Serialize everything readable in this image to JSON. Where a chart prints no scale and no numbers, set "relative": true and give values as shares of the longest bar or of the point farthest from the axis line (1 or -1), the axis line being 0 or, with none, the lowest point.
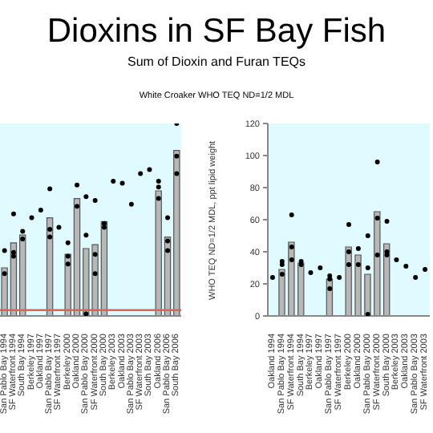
{
  "chart_data": [
    {
      "type": "bar",
      "title": "Dioxins in SF Bay Fish",
      "subtitle": "Sum of Dioxin and Furan TEQs",
      "annotations": [
        "White Croaker WHO TEQ ND=1/2 MDL"
      ],
      "relative": true,
      "marker": "circle",
      "categories": [
        "San Pablo Bay 1994",
        "SF Waterfront 1994",
        "South Bay 1994",
        "Berkeley 1997",
        "Oakland 1997",
        "San Pablo Bay 1997",
        "SF Waterfront 1997",
        "Berkeley 2000",
        "Oakland 2000",
        "San Pablo Bay 2000",
        "SF Waterfront 2000",
        "South Bay 2000",
        "Berkeley 2003",
        "Oakland 2003",
        "San Pablo Bay 2003",
        "SF Waterfront 2003",
        "South Bay 2003",
        "Oakland 2006",
        "San Pablo Bay 2006",
        "South Bay 2006"
      ],
      "series": [
        {
          "color": "#b8b8b8",
          "values": [
            0.25,
            0.38,
            0.42,
            null,
            null,
            0.51,
            null,
            0.32,
            0.61,
            0.35,
            0.37,
            0.49,
            null,
            null,
            null,
            null,
            null,
            0.65,
            0.41,
            0.86
          ]
        },
        {
          "type": "scatter",
          "color": "#000000",
          "values": [
            0.34,
            0.53,
            0.44,
            0.51,
            0.55,
            0.66,
            0.46,
            0.38,
            0.68,
            0.62,
            0.6,
            0.48,
            0.7,
            0.69,
            0.58,
            0.74,
            0.76,
            0.7,
            0.51,
            1
          ]
        },
        {
          "type": "scatter",
          "color": "#000000",
          "values": [
            0.22,
            0.33,
            0.4,
            null,
            null,
            0.45,
            null,
            0.31,
            0.57,
            0.42,
            0.32,
            0.46,
            null,
            null,
            null,
            null,
            null,
            0.67,
            0.39,
            0.83
          ]
        },
        {
          "type": "scatter",
          "color": "#000000",
          "values": [
            null,
            0.31,
            null,
            null,
            null,
            0.41,
            null,
            0.27,
            null,
            0.01,
            0.22,
            null,
            null,
            null,
            null,
            null,
            null,
            0.61,
            0.34,
            0.74
          ]
        }
      ],
      "ref_lines": [
        {
          "axis": "y",
          "value": 0.03,
          "color": "#e06060"
        }
      ]
    },
    {
      "type": "bar",
      "ylabel": "WHO TEQ ND=1/2 MDL, ppt lipid weight",
      "ylim": [
        0,
        120
      ],
      "yticks": [
        0,
        20,
        40,
        60,
        80,
        100,
        120
      ],
      "marker": "circle",
      "categories": [
        "Oakland 1994",
        "San Pablo Bay 1994",
        "SF Waterfront 1994",
        "South Bay 1994",
        "Berkeley 1997",
        "Oakland 1997",
        "San Pablo Bay 1997",
        "SF Waterfront 1997",
        "Berkeley 2000",
        "Oakland 2000",
        "San Pablo Bay 2000",
        "SF Waterfront 2000",
        "South Bay 2000",
        "Berkeley 2003",
        "Oakland 2003",
        "San Pablo Bay 2003",
        "SF Waterfront 2003"
      ],
      "series": [
        {
          "color": "#b8b8b8",
          "values": [
            null,
            29,
            46,
            33,
            null,
            null,
            23,
            null,
            43,
            38,
            26,
            65,
            45,
            null,
            null,
            null,
            null
          ]
        },
        {
          "type": "scatter",
          "color": "#000000",
          "values": [
            24,
            34,
            63,
            34,
            27,
            30,
            25,
            24,
            57,
            42,
            50,
            96,
            59,
            35,
            31,
            24,
            29
          ]
        },
        {
          "type": "scatter",
          "color": "#000000",
          "values": [
            null,
            32,
            43,
            32,
            null,
            null,
            23,
            null,
            40,
            32,
            30,
            61,
            40,
            null,
            null,
            null,
            null
          ]
        },
        {
          "type": "scatter",
          "color": "#000000",
          "values": [
            null,
            26,
            35,
            null,
            null,
            null,
            17,
            null,
            32,
            null,
            1,
            38,
            38,
            null,
            null,
            null,
            null
          ]
        }
      ]
    }
  ]
}
